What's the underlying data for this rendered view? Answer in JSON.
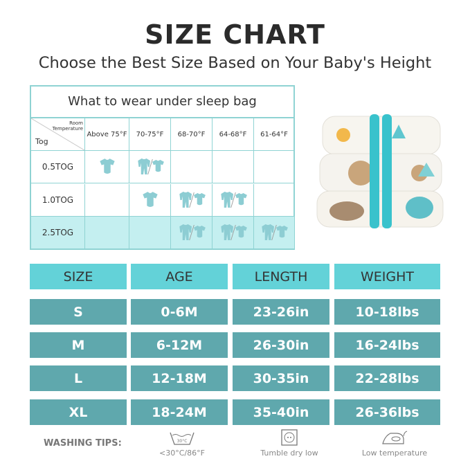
{
  "title": "SIZE CHART",
  "subtitle": "Choose the Best Size Based on Your Baby's Height",
  "tog_table": {
    "heading": "What to wear under sleep bag",
    "corner_top": "Room Temperature",
    "corner_bottom": "Tog",
    "temperatures": [
      "Above 75°F",
      "70-75°F",
      "68-70°F",
      "64-68°F",
      "61-64°F"
    ],
    "rows": [
      {
        "label": "0.5TOG",
        "cells": [
          "bodysuit",
          "bodysuit/sleepsuit",
          "",
          "",
          ""
        ]
      },
      {
        "label": "1.0TOG",
        "cells": [
          "",
          "bodysuit",
          "sleepsuit/bodysuit+pants",
          "sleepsuit/bodysuit+pants",
          ""
        ]
      },
      {
        "label": "2.5TOG",
        "cells": [
          "",
          "",
          "top/bodysuit",
          "sleepsuit/bodysuit+pants",
          "sleepsuit+bodysuit/pants+top"
        ]
      }
    ],
    "accent": "#8fd3d3",
    "shade": "#c4eff0"
  },
  "size_table": {
    "headers": [
      "SIZE",
      "AGE",
      "LENGTH",
      "WEIGHT"
    ],
    "rows": [
      [
        "S",
        "0-6M",
        "23-26in",
        "10-18lbs"
      ],
      [
        "M",
        "6-12M",
        "26-30in",
        "16-24lbs"
      ],
      [
        "L",
        "12-18M",
        "30-35in",
        "22-28lbs"
      ],
      [
        "XL",
        "18-24M",
        "35-40in",
        "26-36lbs"
      ]
    ],
    "header_color": "#63d2d8",
    "row_color": "#5fa8ad"
  },
  "washing": {
    "label": "WASHING TIPS:",
    "tips": [
      {
        "icon": "wash-tub-icon",
        "icon_text": "30°C",
        "text": "<30°C/86°F"
      },
      {
        "icon": "tumble-dry-icon",
        "text": "Tumble dry low"
      },
      {
        "icon": "iron-icon",
        "text": "Low temperature"
      }
    ]
  }
}
